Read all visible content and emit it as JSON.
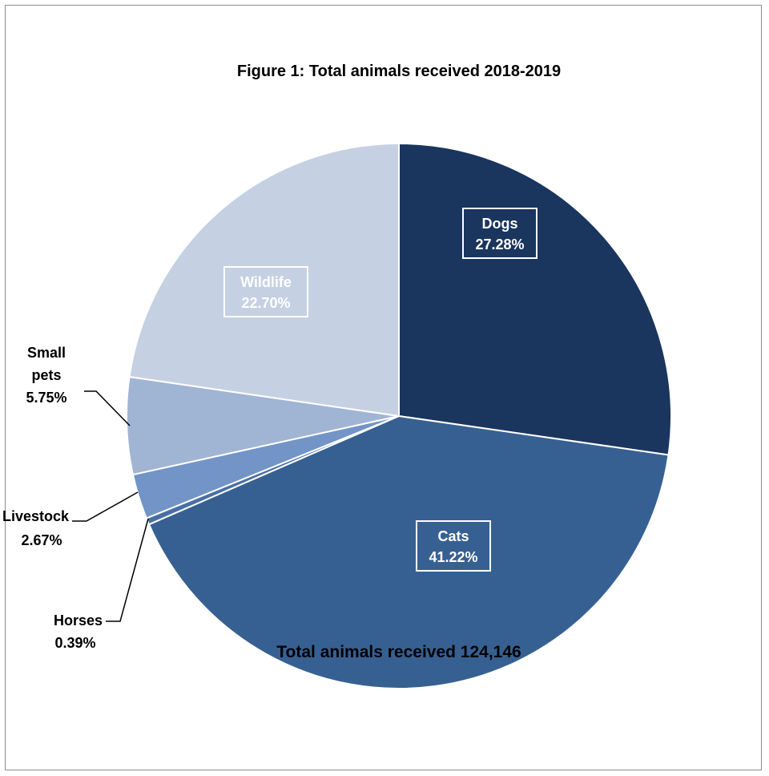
{
  "chart_data": {
    "type": "pie",
    "title": "Figure 1:  Total animals received 2018-2019",
    "footer": "Total animals received 124,146",
    "slices": [
      {
        "label": "Dogs",
        "value": 27.28,
        "value_label": "27.28%",
        "color": "#1a355e",
        "label_color": "#ffffff",
        "label_style": "boxed"
      },
      {
        "label": "Cats",
        "value": 41.22,
        "value_label": "41.22%",
        "color": "#376092",
        "label_color": "#ffffff",
        "label_style": "boxed"
      },
      {
        "label": "Horses",
        "value": 0.39,
        "value_label": "0.39%",
        "color": "#4a6fa5",
        "label_color": "#000000",
        "label_style": "leader"
      },
      {
        "label": "Livestock",
        "value": 2.67,
        "value_label": "2.67%",
        "color": "#7394c6",
        "label_color": "#000000",
        "label_style": "leader"
      },
      {
        "label": "Small pets",
        "value": 5.75,
        "value_label": "5.75%",
        "color": "#a0b4d4",
        "label_color": "#000000",
        "label_style": "leader"
      },
      {
        "label": "Wildlife",
        "value": 22.7,
        "value_label": "22.70%",
        "color": "#c5d0e3",
        "label_color": "#ffffff",
        "label_style": "boxed"
      }
    ]
  }
}
